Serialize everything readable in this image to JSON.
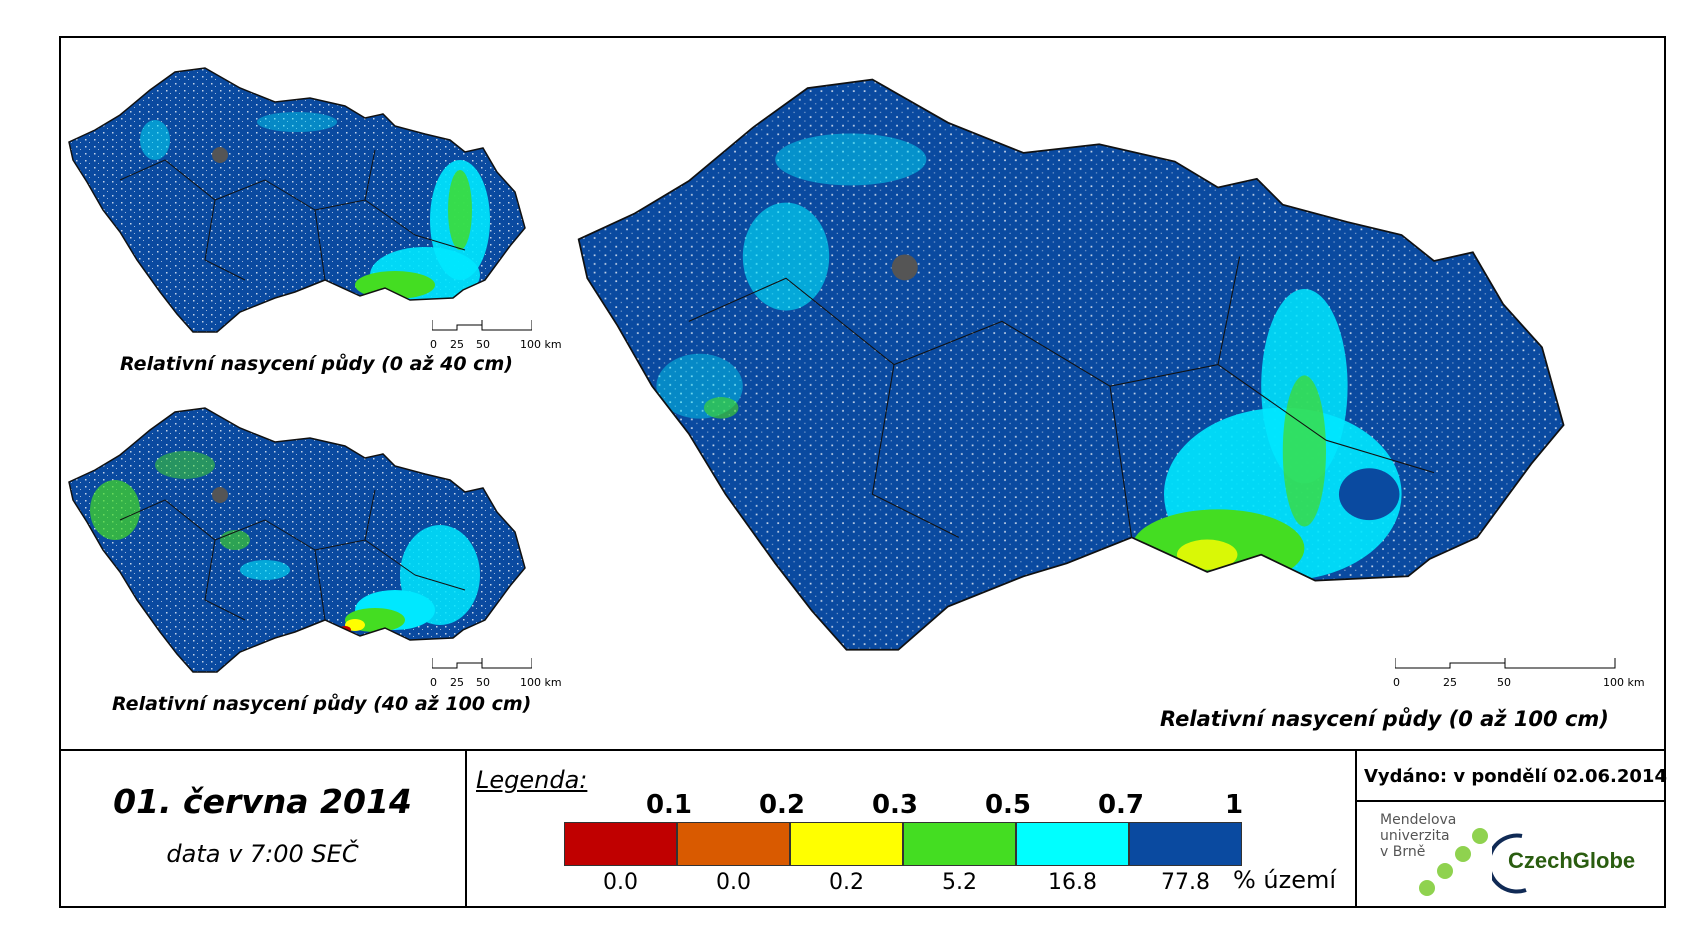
{
  "maps": [
    {
      "id": "map-0-40",
      "caption": "Relativní nasycení půdy (0 až 40 cm)"
    },
    {
      "id": "map-40-100",
      "caption": "Relativní nasycení půdy (40 až 100 cm)"
    },
    {
      "id": "map-0-100",
      "caption": "Relativní nasycení půdy (0 až 100 cm)"
    }
  ],
  "scalebar": {
    "ticks": [
      "0",
      "25",
      "50",
      "100 km"
    ]
  },
  "date": "01. června 2014",
  "time": "data v 7:00 SEČ",
  "legend": {
    "title": "Legenda:",
    "thresholds": [
      "0.1",
      "0.2",
      "0.3",
      "0.5",
      "0.7",
      "1"
    ],
    "classes": [
      {
        "color": "#c00000",
        "pct": "0.0"
      },
      {
        "color": "#d95a00",
        "pct": "0.0"
      },
      {
        "color": "#ffff00",
        "pct": "0.2"
      },
      {
        "color": "#44dd22",
        "pct": "5.2"
      },
      {
        "color": "#00ffff",
        "pct": "16.8"
      },
      {
        "color": "#0a4aa0",
        "pct": "77.8"
      }
    ],
    "unit": "% území"
  },
  "issued": "Vydáno: v pondělí 02.06.2014",
  "logos": {
    "mendel": [
      "Mendelova",
      "univerzita",
      "v Brně"
    ],
    "czechglobe": "CzechGlobe"
  }
}
